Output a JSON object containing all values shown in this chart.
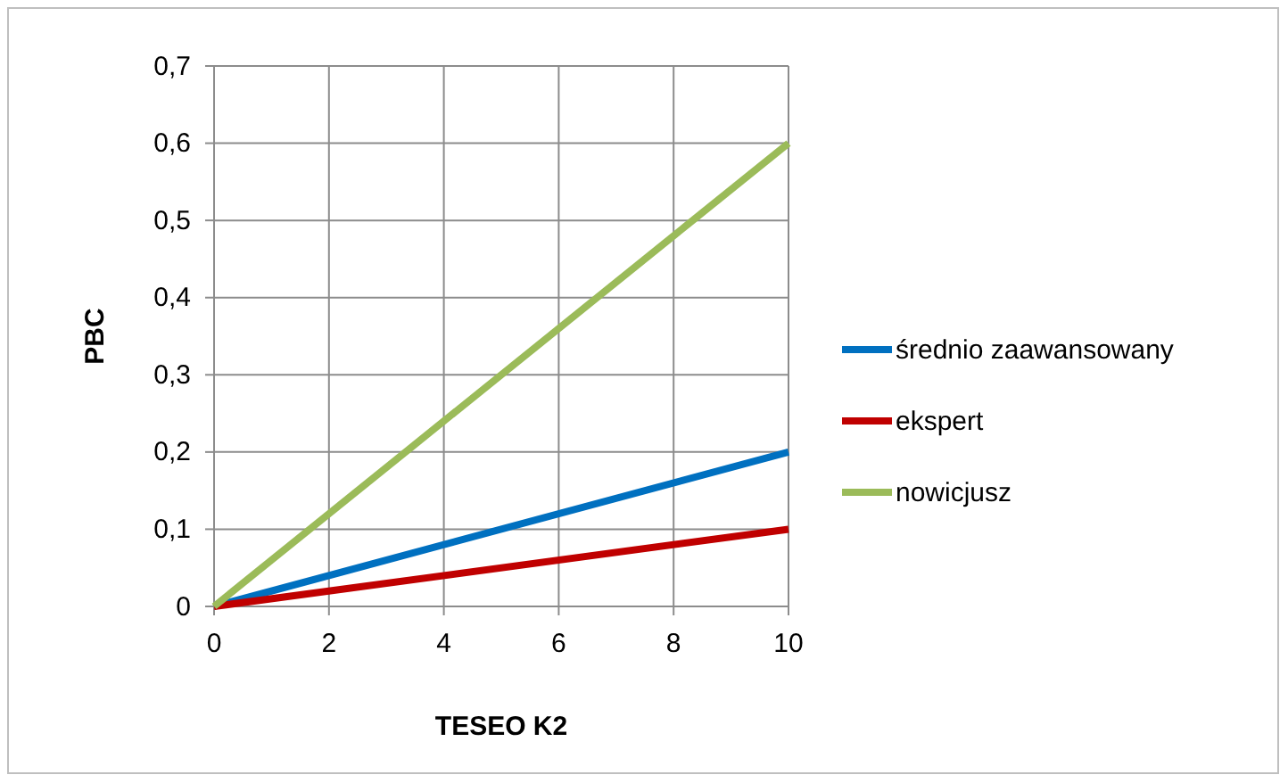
{
  "chart_data": {
    "type": "line",
    "xlabel": "TESEO K2",
    "ylabel": "PBC",
    "x": [
      0,
      10
    ],
    "series": [
      {
        "name": "średnio zaawansowany",
        "color": "#0070c0",
        "values": [
          0,
          0.2
        ]
      },
      {
        "name": "ekspert",
        "color": "#c00000",
        "values": [
          0,
          0.1
        ]
      },
      {
        "name": "nowicjusz",
        "color": "#9bbb59",
        "values": [
          0,
          0.6
        ]
      }
    ],
    "xlim": [
      0,
      10
    ],
    "xticks": [
      0,
      2,
      4,
      6,
      8,
      10
    ],
    "ylim": [
      0,
      0.7
    ],
    "yticks": [
      0,
      {
        "value": 0.1,
        "label": "0,1"
      },
      {
        "value": 0.2,
        "label": "0,2"
      },
      {
        "value": 0.3,
        "label": "0,3"
      },
      {
        "value": 0.4,
        "label": "0,4"
      },
      {
        "value": 0.5,
        "label": "0,5"
      },
      {
        "value": 0.6,
        "label": "0,6"
      },
      {
        "value": 0.7,
        "label": "0,7"
      }
    ],
    "grid": true,
    "legend": "right",
    "marker": "none",
    "line_style": "solid"
  }
}
